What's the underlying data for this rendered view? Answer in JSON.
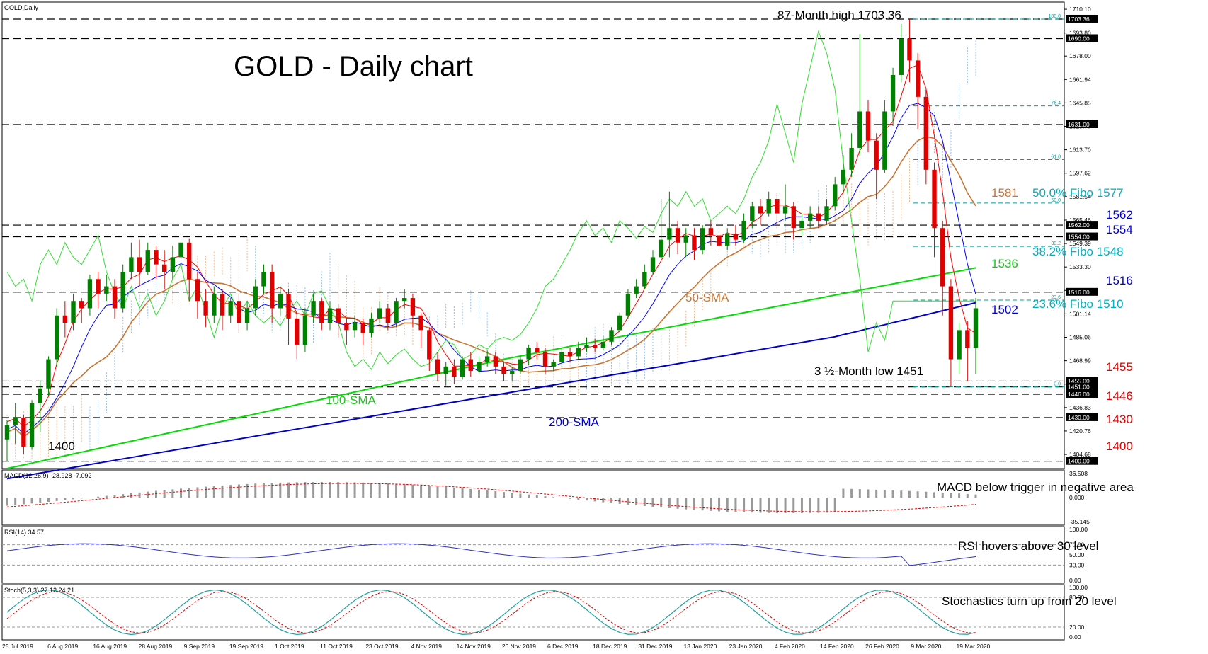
{
  "header": {
    "symbol_label": "GOLD,Daily",
    "title": "GOLD - Daily chart"
  },
  "chart_data": {
    "type": "candlestick",
    "symbol": "GOLD",
    "timeframe": "Daily",
    "x_dates": [
      "25 Jul 2019",
      "6 Aug 2019",
      "16 Aug 2019",
      "28 Aug 2019",
      "9 Sep 2019",
      "19 Sep 2019",
      "1 Oct 2019",
      "11 Oct 2019",
      "23 Oct 2019",
      "4 Nov 2019",
      "14 Nov 2019",
      "26 Nov 2019",
      "6 Dec 2019",
      "18 Dec 2019",
      "31 Dec 2019",
      "13 Jan 2020",
      "23 Jan 2020",
      "4 Feb 2020",
      "14 Feb 2020",
      "26 Feb 2020",
      "9 Mar 2020",
      "19 Mar 2020"
    ],
    "ylim": [
      1395,
      1715
    ],
    "y_ticks": [
      "1710.10",
      "1693.80",
      "1678.00",
      "1661.94",
      "1645.85",
      "1629.77",
      "1613.70",
      "1597.62",
      "1581.54",
      "1565.46",
      "1549.39",
      "1533.30",
      "1517.24",
      "1501.14",
      "1485.06",
      "1468.99",
      "1452.91",
      "1436.83",
      "1420.76",
      "1404.68"
    ],
    "candles": [
      [
        1415,
        1425,
        1400,
        1428
      ],
      [
        1425,
        1430,
        1412,
        1440
      ],
      [
        1430,
        1410,
        1405,
        1432
      ],
      [
        1410,
        1440,
        1408,
        1442
      ],
      [
        1440,
        1450,
        1420,
        1455
      ],
      [
        1450,
        1470,
        1445,
        1472
      ],
      [
        1470,
        1500,
        1465,
        1505
      ],
      [
        1500,
        1495,
        1485,
        1510
      ],
      [
        1495,
        1510,
        1490,
        1515
      ],
      [
        1510,
        1505,
        1495,
        1512
      ],
      [
        1505,
        1525,
        1500,
        1528
      ],
      [
        1525,
        1515,
        1505,
        1530
      ],
      [
        1515,
        1520,
        1510,
        1528
      ],
      [
        1520,
        1505,
        1498,
        1525
      ],
      [
        1505,
        1530,
        1502,
        1535
      ],
      [
        1530,
        1540,
        1525,
        1550
      ],
      [
        1540,
        1530,
        1520,
        1552
      ],
      [
        1530,
        1545,
        1528,
        1550
      ],
      [
        1545,
        1535,
        1525,
        1548
      ],
      [
        1535,
        1530,
        1518,
        1545
      ],
      [
        1530,
        1540,
        1525,
        1548
      ],
      [
        1540,
        1550,
        1535,
        1555
      ],
      [
        1550,
        1525,
        1510,
        1553
      ],
      [
        1525,
        1510,
        1498,
        1530
      ],
      [
        1510,
        1500,
        1492,
        1518
      ],
      [
        1500,
        1515,
        1495,
        1520
      ],
      [
        1515,
        1500,
        1490,
        1518
      ],
      [
        1500,
        1510,
        1495,
        1512
      ],
      [
        1510,
        1495,
        1488,
        1515
      ],
      [
        1495,
        1505,
        1490,
        1510
      ],
      [
        1505,
        1520,
        1500,
        1525
      ],
      [
        1520,
        1530,
        1515,
        1535
      ],
      [
        1530,
        1505,
        1495,
        1535
      ],
      [
        1505,
        1515,
        1500,
        1520
      ],
      [
        1515,
        1498,
        1480,
        1518
      ],
      [
        1498,
        1480,
        1470,
        1502
      ],
      [
        1480,
        1500,
        1475,
        1505
      ],
      [
        1500,
        1510,
        1495,
        1515
      ],
      [
        1510,
        1495,
        1490,
        1512
      ],
      [
        1495,
        1505,
        1490,
        1510
      ],
      [
        1505,
        1495,
        1485,
        1508
      ],
      [
        1495,
        1490,
        1480,
        1498
      ],
      [
        1490,
        1495,
        1485,
        1500
      ],
      [
        1495,
        1488,
        1480,
        1498
      ],
      [
        1488,
        1498,
        1485,
        1502
      ],
      [
        1498,
        1505,
        1495,
        1510
      ],
      [
        1505,
        1495,
        1490,
        1508
      ],
      [
        1495,
        1510,
        1492,
        1512
      ],
      [
        1510,
        1512,
        1505,
        1518
      ],
      [
        1512,
        1500,
        1492,
        1515
      ],
      [
        1500,
        1490,
        1478,
        1502
      ],
      [
        1490,
        1470,
        1462,
        1492
      ],
      [
        1470,
        1460,
        1455,
        1475
      ],
      [
        1460,
        1465,
        1452,
        1468
      ],
      [
        1465,
        1458,
        1453,
        1470
      ],
      [
        1458,
        1470,
        1456,
        1472
      ],
      [
        1470,
        1462,
        1458,
        1475
      ],
      [
        1462,
        1468,
        1460,
        1472
      ],
      [
        1468,
        1472,
        1465,
        1476
      ],
      [
        1472,
        1465,
        1460,
        1475
      ],
      [
        1465,
        1460,
        1455,
        1468
      ],
      [
        1460,
        1462,
        1455,
        1465
      ],
      [
        1462,
        1470,
        1460,
        1472
      ],
      [
        1470,
        1478,
        1466,
        1480
      ],
      [
        1478,
        1475,
        1470,
        1482
      ],
      [
        1475,
        1465,
        1460,
        1478
      ],
      [
        1465,
        1468,
        1462,
        1470
      ],
      [
        1468,
        1475,
        1465,
        1478
      ],
      [
        1475,
        1472,
        1468,
        1478
      ],
      [
        1472,
        1478,
        1470,
        1482
      ],
      [
        1478,
        1480,
        1475,
        1485
      ],
      [
        1480,
        1478,
        1475,
        1484
      ],
      [
        1478,
        1482,
        1476,
        1486
      ],
      [
        1482,
        1490,
        1480,
        1492
      ],
      [
        1490,
        1500,
        1488,
        1502
      ],
      [
        1500,
        1515,
        1498,
        1518
      ],
      [
        1515,
        1520,
        1512,
        1525
      ],
      [
        1520,
        1530,
        1518,
        1535
      ],
      [
        1530,
        1540,
        1528,
        1545
      ],
      [
        1540,
        1552,
        1538,
        1580
      ],
      [
        1552,
        1560,
        1540,
        1585
      ],
      [
        1560,
        1550,
        1542,
        1565
      ],
      [
        1550,
        1555,
        1540,
        1560
      ],
      [
        1555,
        1545,
        1538,
        1560
      ],
      [
        1545,
        1560,
        1542,
        1562
      ],
      [
        1560,
        1555,
        1548,
        1565
      ],
      [
        1555,
        1548,
        1545,
        1560
      ],
      [
        1548,
        1556,
        1545,
        1560
      ],
      [
        1556,
        1552,
        1548,
        1562
      ],
      [
        1552,
        1565,
        1550,
        1570
      ],
      [
        1565,
        1575,
        1560,
        1578
      ],
      [
        1575,
        1570,
        1562,
        1580
      ],
      [
        1570,
        1580,
        1568,
        1585
      ],
      [
        1580,
        1570,
        1560,
        1584
      ],
      [
        1570,
        1575,
        1565,
        1590
      ],
      [
        1575,
        1560,
        1552,
        1578
      ],
      [
        1560,
        1565,
        1555,
        1570
      ],
      [
        1565,
        1570,
        1560,
        1575
      ],
      [
        1570,
        1565,
        1560,
        1575
      ],
      [
        1565,
        1575,
        1562,
        1580
      ],
      [
        1575,
        1590,
        1572,
        1595
      ],
      [
        1590,
        1600,
        1585,
        1610
      ],
      [
        1600,
        1615,
        1595,
        1625
      ],
      [
        1615,
        1640,
        1610,
        1693
      ],
      [
        1640,
        1620,
        1612,
        1648
      ],
      [
        1620,
        1600,
        1580,
        1625
      ],
      [
        1600,
        1640,
        1598,
        1648
      ],
      [
        1640,
        1665,
        1630,
        1670
      ],
      [
        1665,
        1690,
        1660,
        1700
      ],
      [
        1690,
        1675,
        1660,
        1703
      ],
      [
        1675,
        1650,
        1628,
        1680
      ],
      [
        1650,
        1600,
        1590,
        1655
      ],
      [
        1600,
        1560,
        1540,
        1605
      ],
      [
        1560,
        1520,
        1500,
        1565
      ],
      [
        1520,
        1470,
        1451,
        1525
      ],
      [
        1470,
        1490,
        1460,
        1495
      ],
      [
        1490,
        1478,
        1455,
        1496
      ],
      [
        1478,
        1505,
        1460,
        1512
      ]
    ],
    "sma50_label": "50-SMA",
    "sma100_label": "100-SMA",
    "sma200_label": "200-SMA",
    "levels": [
      "1703.36",
      "1690.00",
      "1631.00",
      "1562.00",
      "1554.00",
      "1516.00",
      "1455.00",
      "1451.00",
      "1446.00",
      "1430.00",
      "1400.00"
    ],
    "annotations": {
      "high": "87-Month high 1703.36",
      "low": "3 ½-Month low 1451",
      "fibo50": "50.0% Fibo 1577",
      "fibo382": "38.2% Fibo 1548",
      "fibo236": "23.6% Fibo 1510",
      "v1581": "1581",
      "v1562": "1562",
      "v1554": "1554",
      "v1536": "1536",
      "v1516": "1516",
      "v1502": "1502",
      "v1455": "1455",
      "v1446": "1446",
      "v1430": "1430",
      "v1400": "1400",
      "v1400_left": "1400"
    },
    "fib_labels": [
      "100.0",
      "76.4",
      "61.8",
      "50.0",
      "38.2",
      "23.6",
      "0.0"
    ]
  },
  "macd": {
    "title": "MACD(12,26,9) -28.928 -7.092",
    "note": "MACD below trigger in negative area",
    "ticks": [
      "36.508",
      "0.000",
      "-35.145"
    ]
  },
  "rsi": {
    "title": "RSI(14) 34.57",
    "note": "RSI hovers above 30 level",
    "ticks": [
      "100.00",
      "70.00",
      "50.00",
      "30.00",
      "0.00"
    ]
  },
  "stoch": {
    "title": "Stoch(5,3,3) 27.12 24.21",
    "note": "Stochastics turn up from 20 level",
    "ticks": [
      "100.00",
      "80.00",
      "20.00",
      "0.00"
    ]
  },
  "colors": {
    "bull": "#008000",
    "bear": "#e00000",
    "sma50": "#c87533",
    "sma100": "#00dd00",
    "sma200": "#0000cc",
    "fib": "#00a0a0"
  }
}
